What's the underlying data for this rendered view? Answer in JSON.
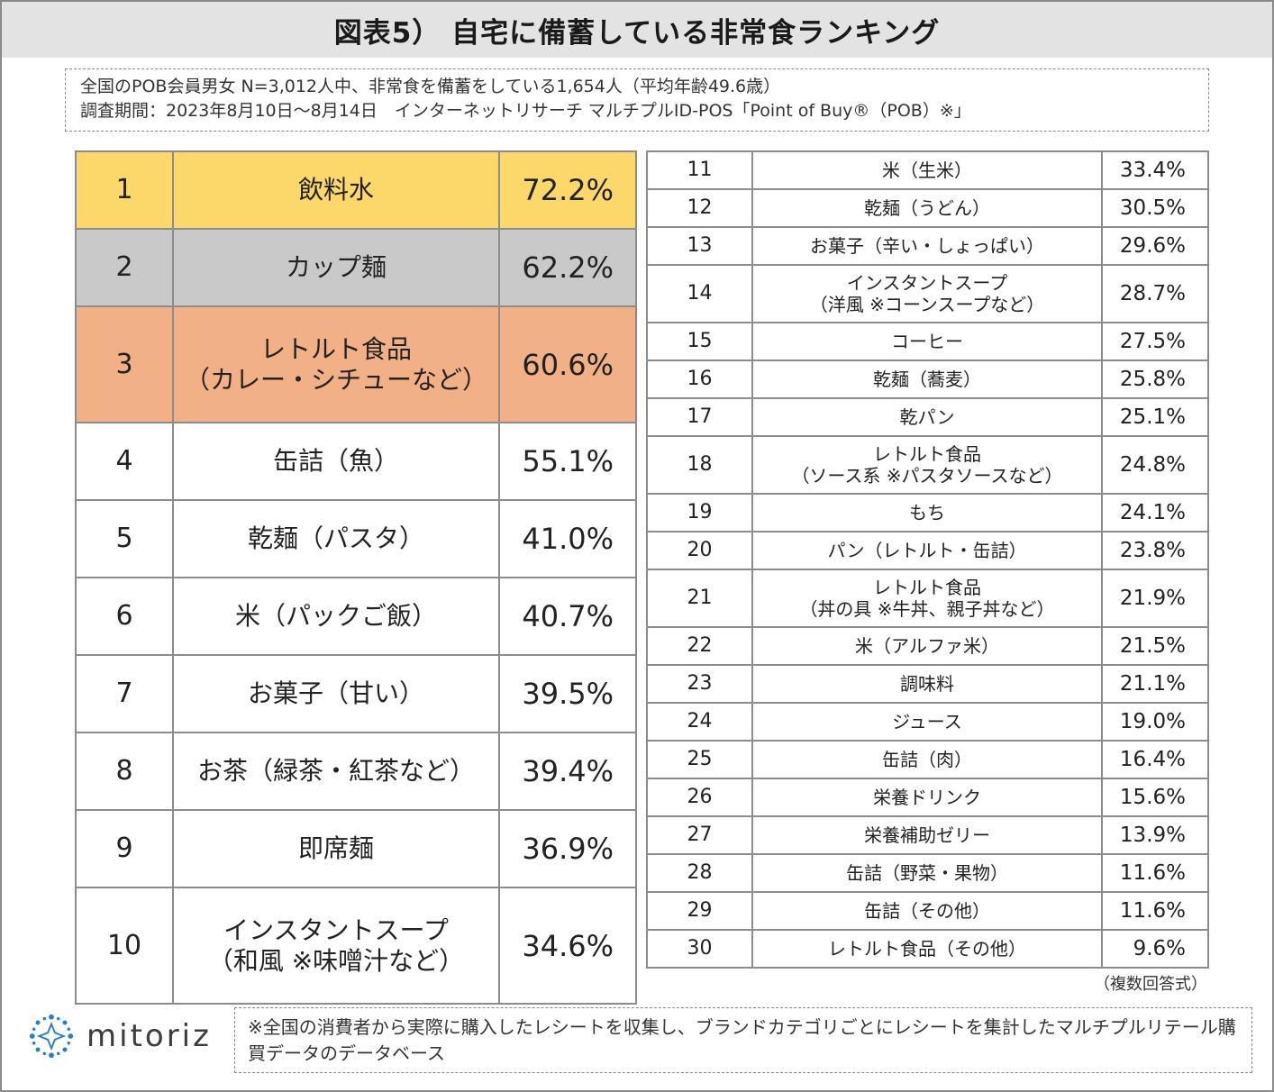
{
  "title": "図表5） 自宅に備蓄している非常食ランキング",
  "info": {
    "line1": "全国のPOB会員男女 N=3,012人中、非常食を備蓄をしている1,654人（平均年齢49.6歳）",
    "line2": "調査期間：2023年8月10日～8月14日　インターネットリサーチ マルチプルID-POS「Point of Buy®（POB）※」"
  },
  "ranking_left": [
    {
      "rank": "1",
      "name": "飲料水",
      "pct": "72.2%"
    },
    {
      "rank": "2",
      "name": "カップ麺",
      "pct": "62.2%"
    },
    {
      "rank": "3",
      "name": "レトルト食品",
      "name2": "（カレー・シチューなど）",
      "pct": "60.6%"
    },
    {
      "rank": "4",
      "name": "缶詰（魚）",
      "pct": "55.1%"
    },
    {
      "rank": "5",
      "name": "乾麺（パスタ）",
      "pct": "41.0%"
    },
    {
      "rank": "6",
      "name": "米（パックご飯）",
      "pct": "40.7%"
    },
    {
      "rank": "7",
      "name": "お菓子（甘い）",
      "pct": "39.5%"
    },
    {
      "rank": "8",
      "name": "お茶（緑茶・紅茶など）",
      "pct": "39.4%"
    },
    {
      "rank": "9",
      "name": "即席麺",
      "pct": "36.9%"
    },
    {
      "rank": "10",
      "name": "インスタントスープ",
      "name2": "（和風 ※味噌汁など）",
      "pct": "34.6%"
    }
  ],
  "ranking_right": [
    {
      "rank": "11",
      "name": "米（生米）",
      "pct": "33.4%"
    },
    {
      "rank": "12",
      "name": "乾麺（うどん）",
      "pct": "30.5%"
    },
    {
      "rank": "13",
      "name": "お菓子（辛い・しょっぱい）",
      "pct": "29.6%"
    },
    {
      "rank": "14",
      "name": "インスタントスープ",
      "name2": "（洋風 ※コーンスープなど）",
      "pct": "28.7%"
    },
    {
      "rank": "15",
      "name": "コーヒー",
      "pct": "27.5%"
    },
    {
      "rank": "16",
      "name": "乾麺（蕎麦）",
      "pct": "25.8%"
    },
    {
      "rank": "17",
      "name": "乾パン",
      "pct": "25.1%"
    },
    {
      "rank": "18",
      "name": "レトルト食品",
      "name2": "（ソース系 ※パスタソースなど）",
      "pct": "24.8%"
    },
    {
      "rank": "19",
      "name": "もち",
      "pct": "24.1%"
    },
    {
      "rank": "20",
      "name": "パン（レトルト・缶詰）",
      "pct": "23.8%"
    },
    {
      "rank": "21",
      "name": "レトルト食品",
      "name2": "（丼の具 ※牛丼、親子丼など）",
      "pct": "21.9%"
    },
    {
      "rank": "22",
      "name": "米（アルファ米）",
      "pct": "21.5%"
    },
    {
      "rank": "23",
      "name": "調味料",
      "pct": "21.1%"
    },
    {
      "rank": "24",
      "name": "ジュース",
      "pct": "19.0%"
    },
    {
      "rank": "25",
      "name": "缶詰（肉）",
      "pct": "16.4%"
    },
    {
      "rank": "26",
      "name": "栄養ドリンク",
      "pct": "15.6%"
    },
    {
      "rank": "27",
      "name": "栄養補助ゼリー",
      "pct": "13.9%"
    },
    {
      "rank": "28",
      "name": "缶詰（野菜・果物）",
      "pct": "11.6%"
    },
    {
      "rank": "29",
      "name": "缶詰（その他）",
      "pct": "11.6%"
    },
    {
      "rank": "30",
      "name": "レトルト食品（その他）",
      "pct": "9.6%"
    }
  ],
  "note_multiple": "（複数回答式）",
  "logo": {
    "text": "mitoriz",
    "icon": "mitoriz-star-logo-icon",
    "color": "#2a7fc1"
  },
  "footnote": "※全国の消費者から実際に購入したレシートを収集し、ブランドカテゴリごとにレシートを集計したマルチプルリテール購買データのデータベース",
  "colors": {
    "rank1": "#fcd769",
    "rank2": "#c9c9c9",
    "rank3": "#f2b086",
    "title_bg": "#e3e3e3"
  }
}
